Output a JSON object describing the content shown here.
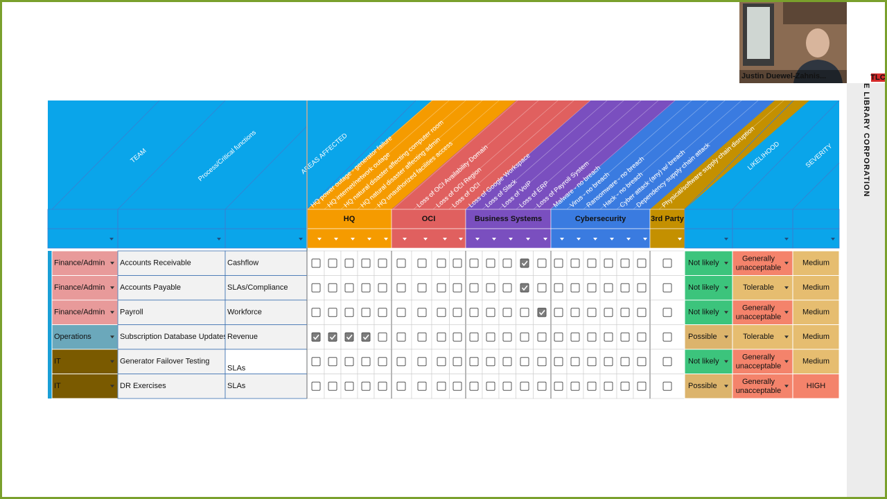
{
  "video": {
    "name": "Justin Duewel-Zahnis...",
    "logo": "TLC"
  },
  "watermark": "E LIBRARY CORPORATION",
  "sheet": {
    "headers": {
      "team": "TEAM",
      "process": "Process/Critical functions",
      "areas": "AREAS AFFECTED",
      "likelihood": "LIKELIHOOD",
      "severity": "SEVERITY"
    },
    "risks": [
      "HQ power outage - generator failure",
      "HQ internet/network outage",
      "HQ natural disaster affecting computer room",
      "HQ natural disaster affecting admin",
      "HQ unauthorized facilities access",
      "Loss of OCI Availability Domain",
      "Loss of OCI Region",
      "Loss of OCI",
      "Loss of Google Workspace",
      "Loss of Slack",
      "Loss of VoIP",
      "Loss of ERP",
      "Loss of Payroll System",
      "Malware - no breach",
      "Virus - no breach",
      "Ransomware - no breach",
      "Hack - no breach",
      "Cyber attack (any) w/ breach",
      "Dependency supply chain attack",
      "Physical/software supply chain disruption"
    ],
    "groups": [
      {
        "name": "HQ",
        "color": "#f59b00"
      },
      {
        "name": "OCI",
        "color": "#e0605f"
      },
      {
        "name": "Business Systems",
        "color": "#7a4fbf"
      },
      {
        "name": "Cybersecurity",
        "color": "#3a7be0"
      },
      {
        "name": "3rd Party",
        "color": "#c49000"
      }
    ],
    "rows": [
      {
        "team": "Finance/Admin",
        "team_color": "#e89a9a",
        "process": "Accounts Receivable",
        "function": "Cashflow",
        "checked": [
          12
        ],
        "likelihood": "Not likely",
        "likelihood_color": "#3cc47c",
        "tolerability": "Generally unacceptable",
        "tolerability_color": "#f4836b",
        "severity": "Medium",
        "severity_color": "#e6bd70"
      },
      {
        "team": "Finance/Admin",
        "team_color": "#e89a9a",
        "process": "Accounts Payable",
        "function": "SLAs/Compliance",
        "checked": [
          12
        ],
        "likelihood": "Not likely",
        "likelihood_color": "#3cc47c",
        "tolerability": "Tolerable",
        "tolerability_color": "#e6bd70",
        "severity": "Medium",
        "severity_color": "#e6bd70"
      },
      {
        "team": "Finance/Admin",
        "team_color": "#e89a9a",
        "process": "Payroll",
        "function": "Workforce",
        "checked": [
          13
        ],
        "likelihood": "Not likely",
        "likelihood_color": "#3cc47c",
        "tolerability": "Generally unacceptable",
        "tolerability_color": "#f4836b",
        "severity": "Medium",
        "severity_color": "#e6bd70"
      },
      {
        "team": "Operations",
        "team_color": "#6ba8bb",
        "process": "Subscription Database Updates",
        "function": "Revenue",
        "checked": [
          0,
          1,
          2,
          3
        ],
        "likelihood": "Possible",
        "likelihood_color": "#dcb46c",
        "tolerability": "Tolerable",
        "tolerability_color": "#e6bd70",
        "severity": "Medium",
        "severity_color": "#e6bd70"
      },
      {
        "team": "IT",
        "team_color": "#7a5a00",
        "process": "Generator Failover Testing",
        "function": "SLAs",
        "checked": [],
        "likelihood": "Not likely",
        "likelihood_color": "#3cc47c",
        "tolerability": "Generally unacceptable",
        "tolerability_color": "#f4836b",
        "severity": "Medium",
        "severity_color": "#e6bd70"
      },
      {
        "team": "IT",
        "team_color": "#7a5a00",
        "process": "DR Exercises",
        "function": "SLAs",
        "checked": [],
        "likelihood": "Possible",
        "likelihood_color": "#dcb46c",
        "tolerability": "Generally unacceptable",
        "tolerability_color": "#f4836b",
        "severity": "HIGH",
        "severity_color": "#f4836b"
      }
    ]
  }
}
